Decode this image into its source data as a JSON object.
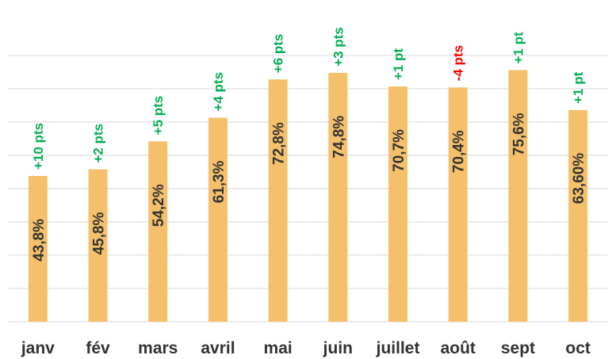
{
  "chart_data": {
    "type": "bar",
    "categories": [
      "janv",
      "fév",
      "mars",
      "avril",
      "mai",
      "juin",
      "juillet",
      "août",
      "sept",
      "oct"
    ],
    "values": [
      43.8,
      45.8,
      54.2,
      61.3,
      72.8,
      74.8,
      70.7,
      70.4,
      75.6,
      63.6
    ],
    "value_labels": [
      "43,8%",
      "45,8%",
      "54,2%",
      "61,3%",
      "72,8%",
      "74,8%",
      "70,7%",
      "70,4%",
      "75,6%",
      "63,60%"
    ],
    "annotations": [
      "+10 pts",
      "+2 pts",
      "+5 pts",
      "+4 pts",
      "+6 pts",
      "+3 pts",
      "+1 pt",
      "-4 pts",
      "+1 pt",
      "+1 pt"
    ],
    "annotation_colors": [
      "#00b050",
      "#00b050",
      "#00b050",
      "#00b050",
      "#00b050",
      "#00b050",
      "#00b050",
      "#ff0000",
      "#00b050",
      "#00b050"
    ],
    "color": "#f4c06c",
    "ylim": [
      0,
      80
    ],
    "yticks": [
      0,
      10,
      20,
      30,
      40,
      50,
      60,
      70,
      80
    ],
    "grid": true
  }
}
